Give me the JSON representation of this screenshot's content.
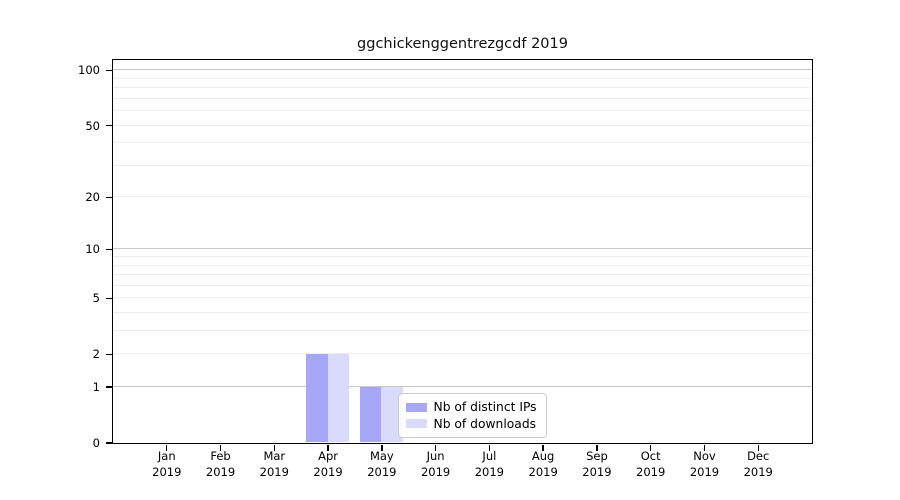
{
  "chart_data": {
    "type": "bar",
    "title": "ggchickenggentrezgcdf 2019",
    "categories": [
      "Jan",
      "Feb",
      "Mar",
      "Apr",
      "May",
      "Jun",
      "Jul",
      "Aug",
      "Sep",
      "Oct",
      "Nov",
      "Dec"
    ],
    "x_year_label": "2019",
    "series": [
      {
        "name": "Nb of distinct IPs",
        "color": "#a7a7f7",
        "values": [
          0,
          0,
          0,
          2,
          1,
          0,
          0,
          0,
          0,
          0,
          0,
          0
        ]
      },
      {
        "name": "Nb of downloads",
        "color": "#dadafa",
        "values": [
          0,
          0,
          0,
          2,
          1,
          0,
          0,
          0,
          0,
          0,
          0,
          0
        ]
      }
    ],
    "yscale": "log1p",
    "ylim": [
      0,
      114
    ],
    "y_ticks": [
      0,
      1,
      2,
      5,
      10,
      20,
      50,
      100
    ],
    "y_minor_ticks": [
      3,
      4,
      6,
      7,
      8,
      9,
      30,
      40,
      60,
      70,
      80,
      90
    ],
    "grid": true,
    "legend_position": "lower center",
    "colors": {
      "major_grid": "#c8c8c8",
      "minor_grid": "#ececec",
      "spine": "#000000",
      "text": "#000000",
      "background": "#ffffff"
    }
  }
}
